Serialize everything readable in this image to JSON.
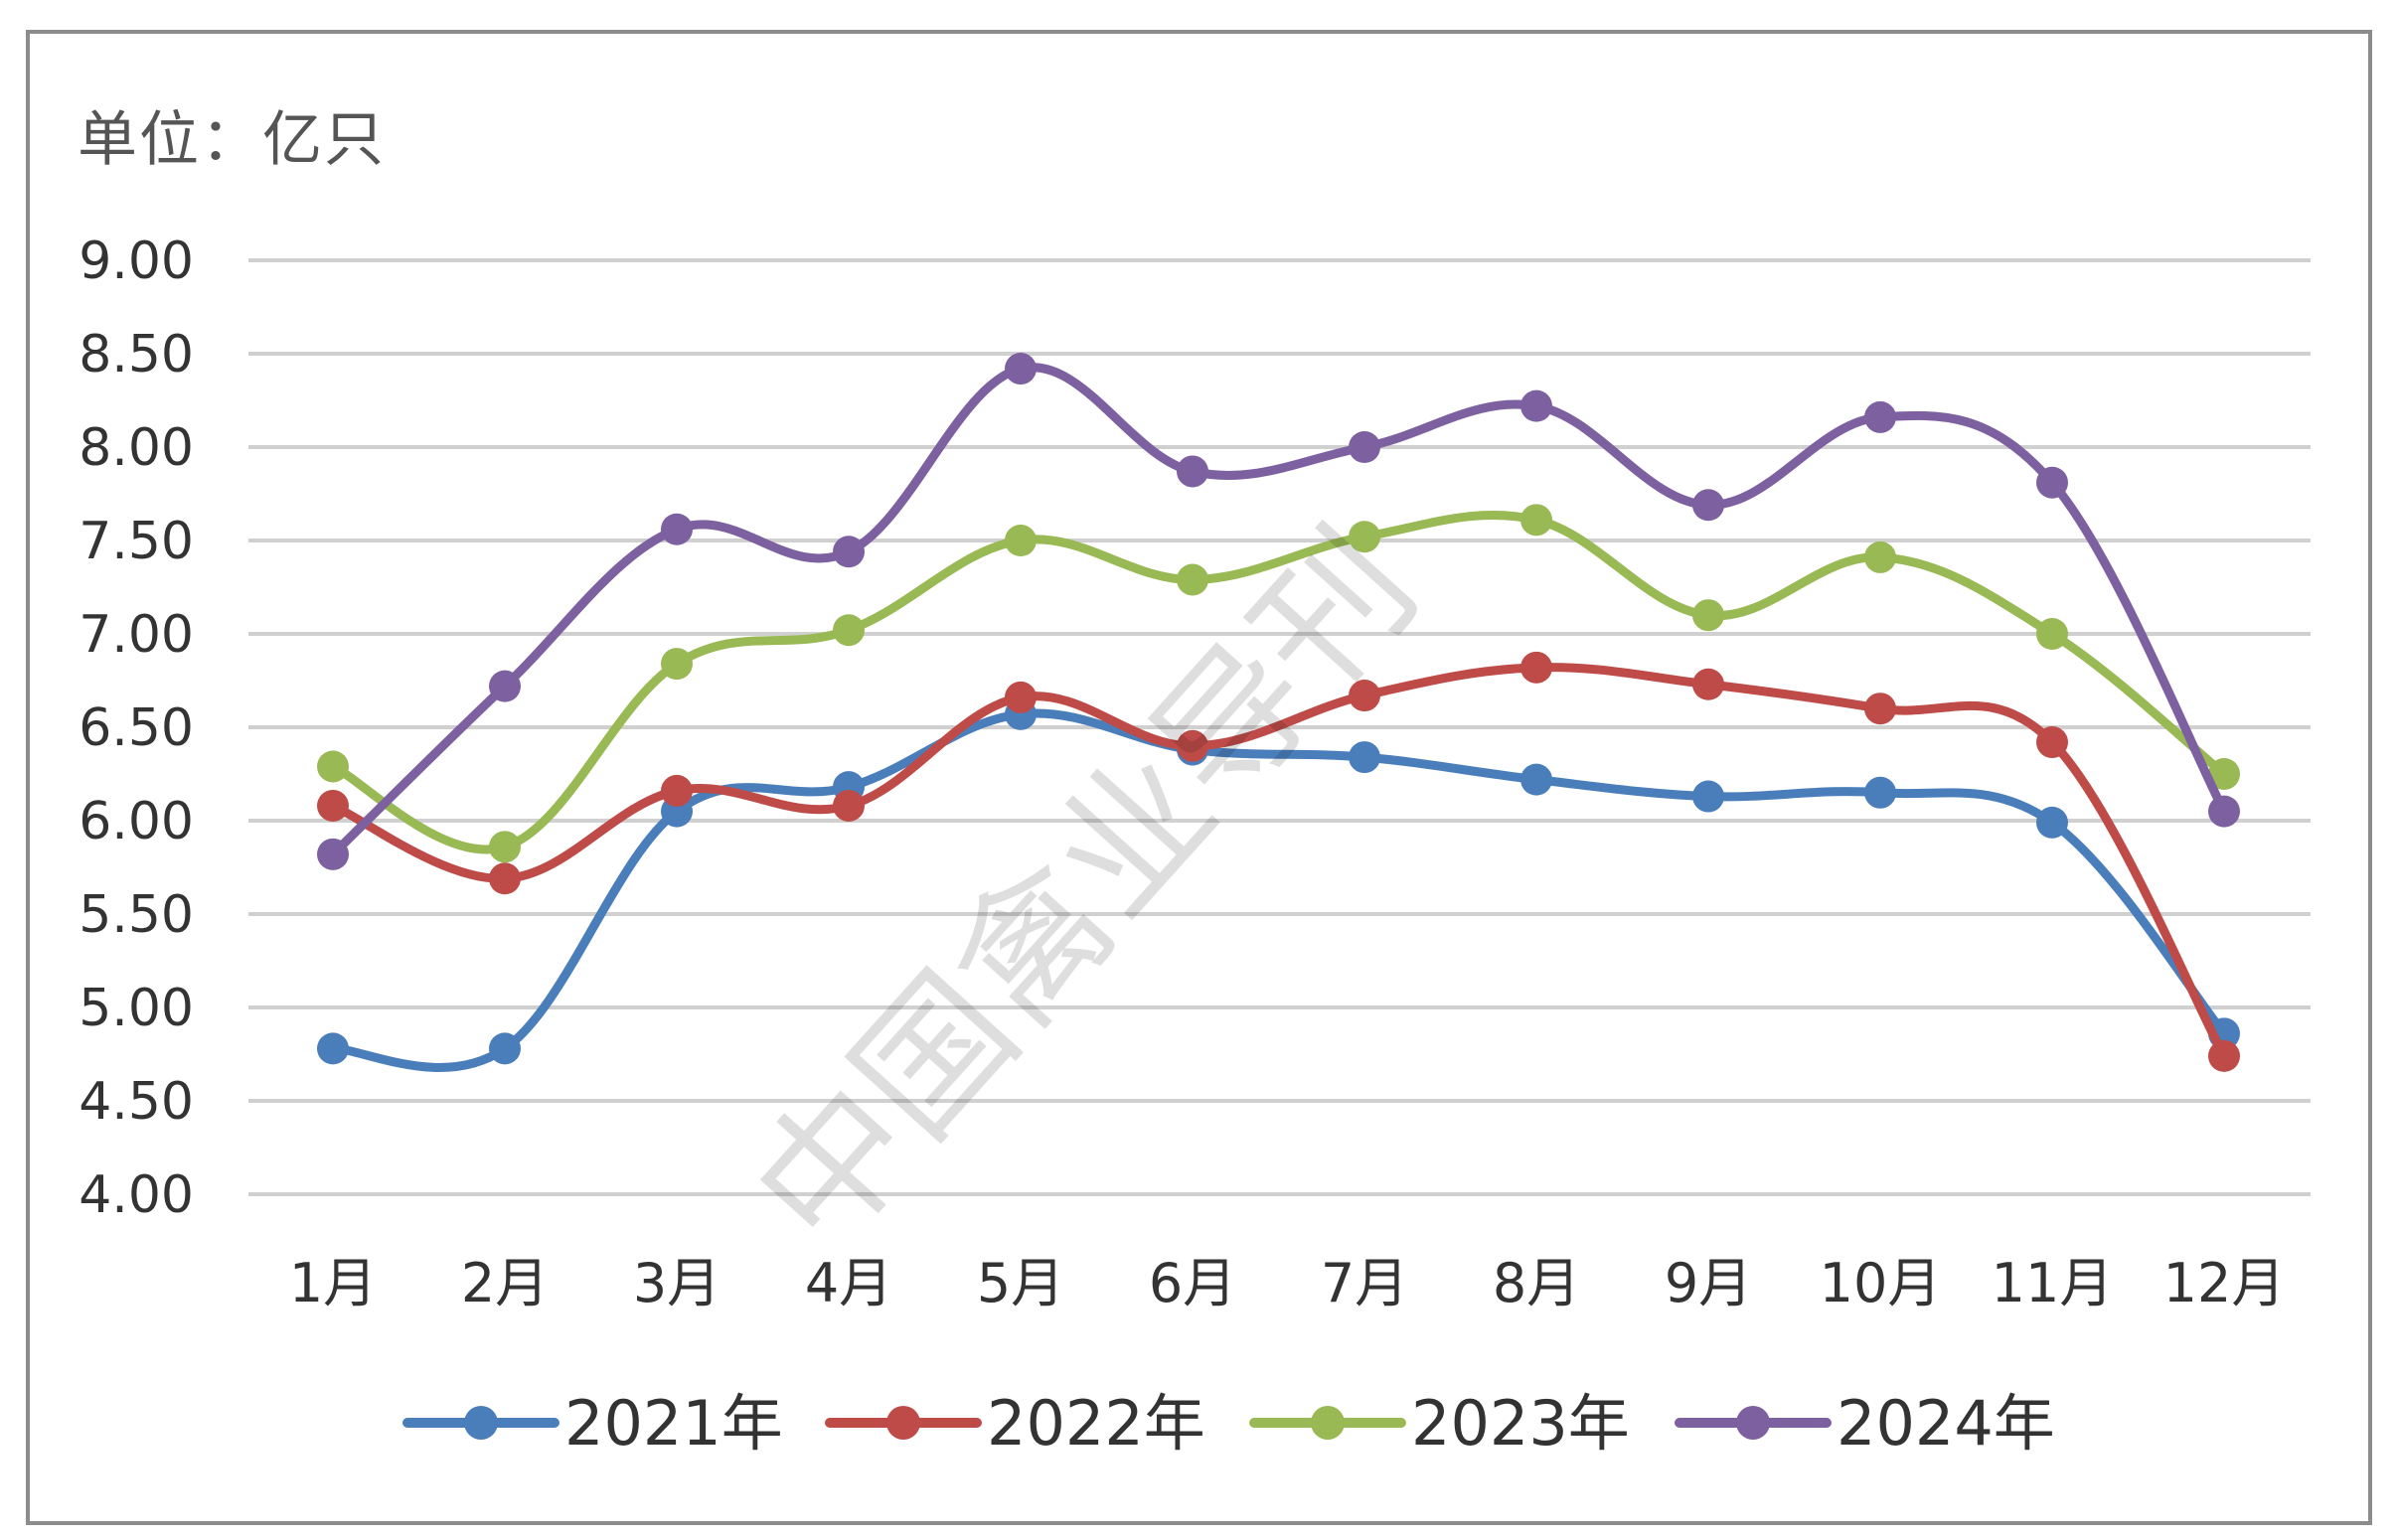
{
  "chart_data": {
    "type": "line",
    "unit_label": "单位：亿只",
    "categories": [
      "1月",
      "2月",
      "3月",
      "4月",
      "5月",
      "6月",
      "7月",
      "8月",
      "9月",
      "10月",
      "11月",
      "12月"
    ],
    "ylim": [
      4.0,
      9.0
    ],
    "yticks": [
      "4.00",
      "4.50",
      "5.00",
      "5.50",
      "6.00",
      "6.50",
      "7.00",
      "7.50",
      "8.00",
      "8.50",
      "9.00"
    ],
    "grid": true,
    "legend_position": "bottom",
    "smooth": true,
    "watermark": "中国禽业导刊",
    "series": [
      {
        "name": "2021年",
        "color": "#4a7ebb",
        "values": [
          4.78,
          4.78,
          6.05,
          6.18,
          6.57,
          6.38,
          6.34,
          6.22,
          6.13,
          6.15,
          5.99,
          4.86
        ]
      },
      {
        "name": "2022年",
        "color": "#be4b48",
        "values": [
          6.08,
          5.69,
          6.16,
          6.08,
          6.66,
          6.4,
          6.67,
          6.82,
          6.73,
          6.6,
          6.42,
          4.74
        ]
      },
      {
        "name": "2023年",
        "color": "#98b954",
        "values": [
          6.29,
          5.86,
          6.84,
          7.02,
          7.5,
          7.29,
          7.52,
          7.61,
          7.1,
          7.41,
          7.0,
          6.25
        ]
      },
      {
        "name": "2024年",
        "color": "#7d60a0",
        "values": [
          5.82,
          6.72,
          7.56,
          7.44,
          8.42,
          7.87,
          8.0,
          8.22,
          7.69,
          8.16,
          7.81,
          6.05
        ]
      }
    ]
  }
}
